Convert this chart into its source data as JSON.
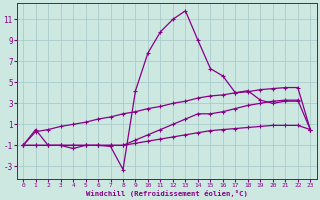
{
  "bg_color": "#cce8e0",
  "grid_color": "#aacccc",
  "line_color": "#880088",
  "xlabel": "Windchill (Refroidissement éolien,°C)",
  "xlim": [
    -0.5,
    23.5
  ],
  "ylim": [
    -4.2,
    12.5
  ],
  "yticks": [
    -3,
    -1,
    1,
    3,
    5,
    7,
    9,
    11
  ],
  "xticks": [
    0,
    1,
    2,
    3,
    4,
    5,
    6,
    7,
    8,
    9,
    10,
    11,
    12,
    13,
    14,
    15,
    16,
    17,
    18,
    19,
    20,
    21,
    22,
    23
  ],
  "c1x": [
    0,
    1,
    2,
    3,
    4,
    5,
    6,
    7,
    8,
    9,
    10,
    11,
    12,
    13,
    14,
    15,
    16,
    17,
    18,
    19,
    20,
    21,
    22
  ],
  "c1y": [
    -1.0,
    0.5,
    -1.0,
    -1.0,
    -1.3,
    -1.0,
    -1.0,
    -1.1,
    -3.3,
    4.2,
    7.8,
    9.8,
    11.0,
    11.8,
    9.0,
    6.3,
    5.6,
    4.0,
    4.2,
    3.3,
    3.0,
    3.2,
    3.2
  ],
  "c2x": [
    0,
    1,
    2,
    3,
    4,
    5,
    6,
    7,
    8,
    9,
    10,
    11,
    12,
    13,
    14,
    15,
    16,
    17,
    18,
    19,
    20,
    21,
    22,
    23
  ],
  "c2y": [
    -1.0,
    -1.0,
    -1.0,
    -1.0,
    -1.0,
    -1.0,
    -1.0,
    -1.0,
    -1.0,
    -0.5,
    0.0,
    0.5,
    1.0,
    1.5,
    2.0,
    2.0,
    2.2,
    2.5,
    2.8,
    3.0,
    3.2,
    3.3,
    3.3,
    0.5
  ],
  "c3x": [
    0,
    1,
    2,
    3,
    4,
    5,
    6,
    7,
    8,
    9,
    10,
    11,
    12,
    13,
    14,
    15,
    16,
    17,
    18,
    19,
    20,
    21,
    22,
    23
  ],
  "c3y": [
    -1.0,
    0.3,
    0.5,
    0.8,
    1.0,
    1.2,
    1.5,
    1.7,
    2.0,
    2.2,
    2.5,
    2.7,
    3.0,
    3.2,
    3.5,
    3.7,
    3.8,
    4.0,
    4.1,
    4.3,
    4.4,
    4.5,
    4.5,
    0.5
  ],
  "c4x": [
    0,
    1,
    2,
    3,
    4,
    5,
    6,
    7,
    8,
    9,
    10,
    11,
    12,
    13,
    14,
    15,
    16,
    17,
    18,
    19,
    20,
    21,
    22,
    23
  ],
  "c4y": [
    -1.0,
    -1.0,
    -1.0,
    -1.0,
    -1.0,
    -1.0,
    -1.0,
    -1.0,
    -1.0,
    -0.8,
    -0.6,
    -0.4,
    -0.2,
    0.0,
    0.2,
    0.4,
    0.5,
    0.6,
    0.7,
    0.8,
    0.9,
    0.9,
    0.9,
    0.5
  ]
}
